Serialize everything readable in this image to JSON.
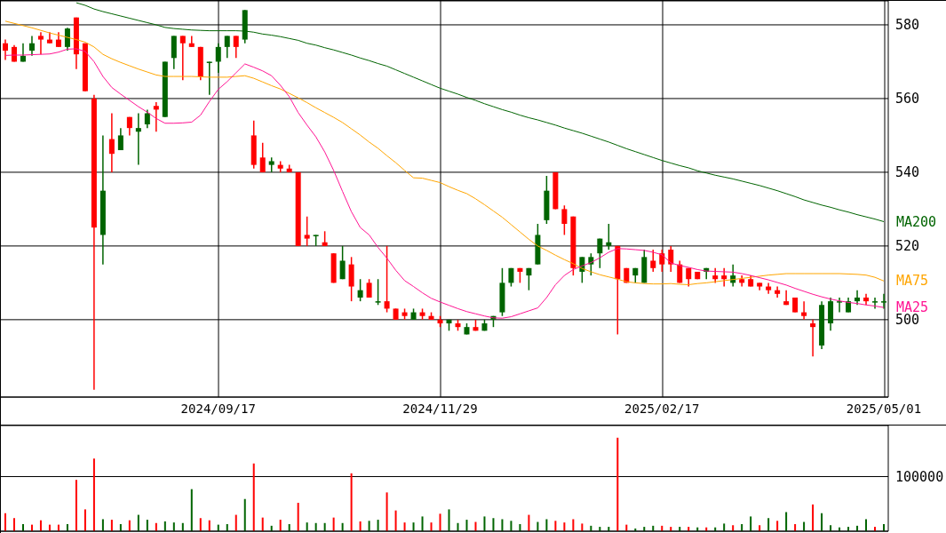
{
  "chart_data": [
    {
      "type": "candlestick",
      "categories": [
        null,
        null,
        null,
        null,
        null,
        null,
        null,
        null,
        null,
        null,
        null,
        null,
        null,
        null,
        null,
        null,
        null,
        null,
        null,
        null,
        null,
        null,
        null,
        null,
        "2024/09/17",
        null,
        null,
        null,
        null,
        null,
        null,
        null,
        null,
        null,
        null,
        null,
        null,
        null,
        null,
        null,
        null,
        null,
        null,
        null,
        null,
        null,
        null,
        null,
        null,
        "2024/11/29",
        null,
        null,
        null,
        null,
        null,
        null,
        null,
        null,
        null,
        null,
        null,
        null,
        null,
        null,
        null,
        null,
        null,
        null,
        null,
        null,
        null,
        null,
        null,
        null,
        "2025/02/17",
        null,
        null,
        null,
        null,
        null,
        null,
        null,
        null,
        null,
        null,
        null,
        null,
        null,
        null,
        null,
        null,
        null,
        null,
        null,
        null,
        null,
        null,
        null,
        null,
        "2025/05/01"
      ],
      "ylim": [
        479,
        586.5
      ],
      "yticks": [
        500,
        520,
        540,
        560,
        580
      ],
      "grid": true,
      "colors": [
        "#006400",
        "#ff0000"
      ],
      "series": [
        {
          "type": "line",
          "name": "MA200",
          "color": "#006400",
          "values": [
            null,
            null,
            null,
            null,
            null,
            null,
            null,
            null,
            586,
            585.3,
            584.3,
            583.6,
            583,
            582.4,
            581.8,
            581.2,
            580.6,
            580,
            579.3,
            579,
            578.8,
            578.6,
            578.5,
            578.4,
            578.4,
            578.4,
            578.4,
            578.3,
            578,
            577.5,
            577.2,
            576.8,
            576.3,
            575.8,
            575,
            574.5,
            573.8,
            573.2,
            572.5,
            571.8,
            571,
            570.3,
            569.5,
            568.8,
            567.8,
            566.8,
            565.8,
            564.8,
            563.8,
            562.8,
            562,
            561.2,
            560.3,
            559.5,
            558.6,
            557.8,
            557,
            556.3,
            555.5,
            554.8,
            554.2,
            553.5,
            552.8,
            552,
            551.3,
            550.6,
            549.8,
            549,
            548.2,
            547.3,
            546.4,
            545.6,
            544.8,
            544,
            543.2,
            542.5,
            541.8,
            541.2,
            540.4,
            539.8,
            539.2,
            538.7,
            538.2,
            537.6,
            537,
            536.4,
            535.7,
            535,
            534.2,
            533.4,
            532.5,
            531.8,
            531.1,
            530.5,
            529.8,
            529.2,
            528.5,
            527.9,
            527.3,
            526.6
          ]
        },
        {
          "type": "line",
          "name": "MA75",
          "color": "#ffa500",
          "values": [
            581,
            580.4,
            579.8,
            579.2,
            578.5,
            577.8,
            577.2,
            576.6,
            576,
            575.3,
            574,
            572,
            570.8,
            569.8,
            568.9,
            568,
            567.2,
            566.4,
            566,
            566,
            566,
            566,
            565.9,
            565.8,
            565.8,
            565.8,
            566,
            566.2,
            565.5,
            564.5,
            563.5,
            562.6,
            561.4,
            560.2,
            558.9,
            557.5,
            556.2,
            554.9,
            553.5,
            551.8,
            550.1,
            548.2,
            546.5,
            544.5,
            542.6,
            540.5,
            538.5,
            538.4,
            537.8,
            537.2,
            536.1,
            535.1,
            534.2,
            532.8,
            531.2,
            529.5,
            527.8,
            525.8,
            523.8,
            521.8,
            520,
            518.8,
            517.5,
            516.3,
            515.2,
            513.9,
            513,
            512.2,
            511.6,
            511,
            510.3,
            510,
            509.8,
            509.7,
            509.7,
            509.8,
            509.6,
            509.5,
            509.8,
            510,
            510.3,
            510.6,
            510.9,
            511.2,
            511.5,
            511.8,
            512.1,
            512.3,
            512.5,
            512.5,
            512.5,
            512.5,
            512.5,
            512.5,
            512.5,
            512.4,
            512.3,
            512.1,
            511.5,
            510.5
          ]
        },
        {
          "type": "line",
          "name": "MA25",
          "color": "#ff1493",
          "values": [
            571.7,
            571.8,
            571.8,
            571.9,
            572,
            572.1,
            572.6,
            573.4,
            573.5,
            572.8,
            570,
            566,
            563,
            561.2,
            559.5,
            557.8,
            556.3,
            554.6,
            553.3,
            553.3,
            553.4,
            553.6,
            555.5,
            559.2,
            562.5,
            564.6,
            567,
            569.4,
            568.5,
            567.5,
            566.2,
            563.6,
            560.5,
            556.2,
            552.8,
            549.6,
            545.5,
            540.5,
            534.8,
            529.3,
            525,
            523,
            519.6,
            516.7,
            513.4,
            510.6,
            509,
            507.3,
            505.8,
            504.8,
            503.9,
            503,
            502.2,
            501.6,
            501,
            500.5,
            500.4,
            500.8,
            501.6,
            502.4,
            503.2,
            506,
            509.5,
            512,
            513.6,
            514.6,
            515.5,
            516.8,
            518.3,
            519.3,
            519.2,
            519,
            518.8,
            518.3,
            517.6,
            515.4,
            514.7,
            514.2,
            513.6,
            513.2,
            513.1,
            513,
            512.9,
            512.5,
            512,
            511.4,
            510.8,
            510.1,
            509.4,
            508.5,
            507.7,
            506.9,
            506.2,
            505.6,
            505.1,
            504.7,
            504.4,
            504,
            503.7,
            503.3
          ]
        },
        {
          "type": "candlestick",
          "ohlc": [
            [
              575,
              576,
              570.5,
              573
            ],
            [
              574,
              574.5,
              570,
              570
            ],
            [
              570,
              575,
              570,
              571.6
            ],
            [
              573,
              577,
              571.6,
              575
            ],
            [
              577,
              578,
              572,
              576
            ],
            [
              576,
              578,
              575,
              575
            ],
            [
              576,
              578,
              574,
              574
            ],
            [
              574,
              579.2,
              573,
              579
            ],
            [
              582,
              582,
              568,
              572
            ],
            [
              575,
              575,
              562,
              562
            ],
            [
              560,
              561,
              481,
              525
            ],
            [
              523,
              550,
              515,
              535
            ],
            [
              549,
              556,
              540,
              545
            ],
            [
              546,
              552,
              546,
              550
            ],
            [
              555,
              555,
              550,
              552
            ],
            [
              551,
              556,
              542,
              552
            ],
            [
              553,
              557,
              552,
              556
            ],
            [
              558,
              559,
              551,
              557
            ],
            [
              555,
              570,
              555,
              570
            ],
            [
              571,
              577,
              568,
              577
            ],
            [
              577,
              577,
              565,
              575
            ],
            [
              575,
              577,
              574,
              574
            ],
            [
              574,
              574,
              565,
              566
            ],
            [
              570,
              570,
              561,
              570
            ],
            [
              570,
              575,
              567,
              574
            ],
            [
              574,
              577,
              571,
              577
            ],
            [
              577,
              577,
              571,
              574
            ],
            [
              576,
              584,
              575,
              584
            ],
            [
              550,
              554,
              541,
              542
            ],
            [
              544,
              548,
              540,
              540
            ],
            [
              542,
              544,
              540,
              543
            ],
            [
              542,
              543,
              540,
              541
            ],
            [
              541,
              542,
              540,
              540
            ],
            [
              540,
              540,
              520,
              520
            ],
            [
              523,
              528,
              520,
              522
            ],
            [
              523,
              523,
              520,
              523
            ],
            [
              521,
              524,
              520,
              520
            ],
            [
              518,
              518,
              510,
              510
            ],
            [
              511,
              520,
              511,
              516
            ],
            [
              515,
              517,
              505,
              509
            ],
            [
              506,
              511,
              505,
              508
            ],
            [
              510,
              511,
              506,
              506
            ],
            [
              505,
              511,
              504,
              505
            ],
            [
              505,
              520,
              502,
              503
            ],
            [
              503,
              503,
              500,
              500
            ],
            [
              502,
              503,
              500,
              501
            ],
            [
              500,
              503,
              500,
              502
            ],
            [
              502,
              503,
              500,
              501
            ],
            [
              501,
              502,
              500,
              500
            ],
            [
              500,
              501,
              498,
              499
            ],
            [
              499,
              500,
              497,
              500
            ],
            [
              499,
              500,
              497,
              498
            ],
            [
              496,
              499,
              496,
              498
            ],
            [
              498,
              500,
              497,
              497
            ],
            [
              497,
              500,
              497,
              499
            ],
            [
              500,
              501,
              498,
              501
            ],
            [
              502,
              514,
              501,
              510
            ],
            [
              510,
              514,
              509,
              514
            ],
            [
              514,
              514,
              510,
              513
            ],
            [
              512,
              514,
              508,
              514
            ],
            [
              515,
              526,
              515,
              523
            ],
            [
              527,
              539,
              526,
              535
            ],
            [
              540,
              540,
              530,
              530
            ],
            [
              530,
              531,
              523,
              526
            ],
            [
              528,
              528,
              512,
              514
            ],
            [
              513,
              517,
              510,
              517
            ],
            [
              515,
              518,
              512,
              517
            ],
            [
              518,
              522,
              514,
              522
            ],
            [
              520,
              526,
              519,
              521
            ],
            [
              520,
              520,
              496,
              511
            ],
            [
              514,
              514,
              510,
              510
            ],
            [
              512,
              514,
              510,
              514
            ],
            [
              510,
              519,
              510,
              517
            ],
            [
              516,
              519,
              513,
              514
            ],
            [
              518,
              519,
              513,
              515
            ],
            [
              519,
              520,
              513,
              515
            ],
            [
              515,
              516,
              510,
              510
            ],
            [
              514,
              514,
              509,
              511
            ],
            [
              513,
              513,
              511,
              511
            ],
            [
              513,
              514,
              511,
              514
            ],
            [
              512,
              514,
              510,
              511
            ],
            [
              512,
              514,
              509,
              511
            ],
            [
              510,
              515,
              509,
              512
            ],
            [
              511,
              512,
              509,
              510
            ],
            [
              511,
              512,
              509,
              509
            ],
            [
              510,
              510,
              508,
              509
            ],
            [
              509,
              510,
              507,
              508
            ],
            [
              508,
              509,
              506,
              507
            ],
            [
              505,
              508,
              504,
              504
            ],
            [
              506,
              506,
              502,
              502
            ],
            [
              502,
              505,
              500,
              501
            ],
            [
              499,
              500,
              490,
              498
            ],
            [
              493,
              505,
              492,
              504
            ],
            [
              499,
              506,
              497,
              505
            ],
            [
              505,
              506,
              502,
              505
            ],
            [
              502,
              506,
              502,
              505
            ],
            [
              505,
              508,
              504,
              506
            ],
            [
              506,
              507,
              504,
              505
            ],
            [
              505,
              506,
              503,
              505
            ],
            [
              505,
              507,
              503,
              505
            ]
          ]
        }
      ]
    },
    {
      "type": "bar",
      "categories": [
        null,
        null,
        null,
        null,
        null,
        null,
        null,
        null,
        null,
        null,
        null,
        null,
        null,
        null,
        null,
        null,
        null,
        null,
        null,
        null,
        null,
        null,
        null,
        null,
        null,
        null,
        null,
        null,
        null,
        null,
        null,
        null,
        null,
        null,
        null,
        null,
        null,
        null,
        null,
        null,
        null,
        null,
        null,
        null,
        null,
        null,
        null,
        null,
        null,
        null,
        null,
        null,
        null,
        null,
        null,
        null,
        null,
        null,
        null,
        null,
        null,
        null,
        null,
        null,
        null,
        null,
        null,
        null,
        null,
        null,
        null,
        null,
        null,
        null,
        null,
        null,
        null,
        null,
        null,
        null,
        null,
        null,
        null,
        null,
        null,
        null,
        null,
        null,
        null,
        null,
        null,
        null,
        null,
        null,
        null,
        null,
        null,
        null,
        null,
        null
      ],
      "ylim": [
        0,
        193500
      ],
      "yticks": [
        {
          "value": 0,
          "label": null
        },
        100000
      ],
      "grid": "y",
      "tick_labels": "y",
      "values": [
        33000,
        24000,
        13000,
        12000,
        20000,
        12000,
        12000,
        13000,
        94000,
        40000,
        133000,
        22000,
        21000,
        13000,
        20000,
        30000,
        21000,
        15000,
        18000,
        16000,
        15000,
        77000,
        24000,
        20000,
        12000,
        13000,
        30000,
        59000,
        124000,
        25000,
        10000,
        21000,
        13000,
        52000,
        16000,
        15000,
        15000,
        25000,
        15000,
        106000,
        18000,
        19000,
        21000,
        71000,
        38000,
        16000,
        16000,
        27000,
        16000,
        32000,
        40000,
        15000,
        21000,
        17000,
        27000,
        24000,
        22000,
        19000,
        13000,
        30000,
        17000,
        22000,
        19000,
        16000,
        22000,
        14000,
        10000,
        8000,
        8000,
        171000,
        12000,
        5000,
        8000,
        10000,
        10000,
        8000,
        8000,
        8000,
        7000,
        7000,
        7000,
        14000,
        11000,
        13000,
        27000,
        11000,
        24000,
        19000,
        35000,
        13000,
        17000,
        49000,
        33000,
        11000,
        7000,
        8000,
        10000,
        22000,
        8000,
        13000
      ],
      "colors": [
        "#ff0000",
        "#ff0000",
        "#006400",
        "#ff0000",
        "#ff0000",
        "#ff0000",
        "#ff0000",
        "#006400",
        "#ff0000",
        "#ff0000",
        "#ff0000",
        "#006400",
        "#ff0000",
        "#006400",
        "#ff0000",
        "#006400",
        "#006400",
        "#ff0000",
        "#006400",
        "#006400",
        "#006400",
        "#006400",
        "#ff0000",
        "#ff0000",
        "#006400",
        "#006400",
        "#ff0000",
        "#006400",
        "#ff0000",
        "#ff0000",
        "#006400",
        "#ff0000",
        "#006400",
        "#ff0000",
        "#006400",
        "#006400",
        "#006400",
        "#ff0000",
        "#006400",
        "#ff0000",
        "#ff0000",
        "#006400",
        "#006400",
        "#ff0000",
        "#ff0000",
        "#ff0000",
        "#006400",
        "#006400",
        "#ff0000",
        "#ff0000",
        "#006400",
        "#006400",
        "#006400",
        "#ff0000",
        "#006400",
        "#006400",
        "#006400",
        "#006400",
        "#006400",
        "#ff0000",
        "#006400",
        "#006400",
        "#ff0000",
        "#ff0000",
        "#ff0000",
        "#ff0000",
        "#006400",
        "#006400",
        "#006400",
        "#ff0000",
        "#ff0000",
        "#006400",
        "#006400",
        "#006400",
        "#ff0000",
        "#ff0000",
        "#006400",
        "#ff0000",
        "#006400",
        "#ff0000",
        "#006400",
        "#006400",
        "#ff0000",
        "#006400",
        "#006400",
        "#ff0000",
        "#006400",
        "#ff0000",
        "#006400",
        "#ff0000",
        "#006400",
        "#ff0000",
        "#006400",
        "#006400",
        "#006400",
        "#006400",
        "#006400",
        "#006400",
        "#ff0000",
        "#006400"
      ]
    }
  ]
}
